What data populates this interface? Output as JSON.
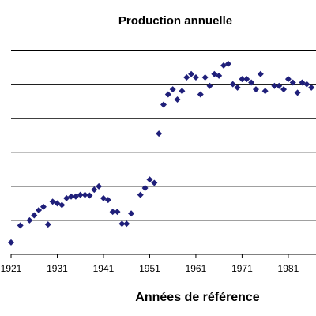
{
  "chart_data": {
    "type": "scatter",
    "title": "Production annuelle",
    "xlabel": "Années de référence",
    "ylabel": "",
    "xlim": [
      1921,
      1987
    ],
    "ylim": [
      0,
      65
    ],
    "x_ticks": [
      "1921",
      "1931",
      "1941",
      "1951",
      "1961",
      "1971",
      "1981"
    ],
    "x_tick_values": [
      1921,
      1931,
      1941,
      1951,
      1961,
      1971,
      1981
    ],
    "y_gridlines": [
      10,
      20,
      30,
      40,
      50,
      60
    ],
    "grid": true,
    "legend": "none",
    "marker_color": "#1f1f7a",
    "series": [
      {
        "x": [
          1921,
          1923,
          1925,
          1926,
          1927,
          1928,
          1929,
          1930,
          1931,
          1932,
          1933,
          1934,
          1935,
          1936,
          1937,
          1938,
          1939,
          1940,
          1941,
          1942,
          1943,
          1944,
          1945,
          1946,
          1947,
          1949,
          1950,
          1951,
          1952,
          1953,
          1954,
          1955,
          1956,
          1957,
          1958,
          1959,
          1960,
          1961,
          1962,
          1963,
          1964,
          1965,
          1966,
          1967,
          1968,
          1969,
          1970,
          1971,
          1972,
          1973,
          1974,
          1975,
          1976,
          1978,
          1979,
          1980,
          1981,
          1982,
          1983,
          1984,
          1985,
          1986
        ],
        "y": [
          3.5,
          8.5,
          10.0,
          11.5,
          13.0,
          14.0,
          8.8,
          15.5,
          15.0,
          14.5,
          16.5,
          17.0,
          17.0,
          17.5,
          17.5,
          17.3,
          19.0,
          20.0,
          16.5,
          16.0,
          12.5,
          12.5,
          9.0,
          9.0,
          12.0,
          17.5,
          19.5,
          22.0,
          21.0,
          35.5,
          44.0,
          47.0,
          48.5,
          45.5,
          48.0,
          52.0,
          53.0,
          52.0,
          47.0,
          52.0,
          49.5,
          53.0,
          52.5,
          55.5,
          56.0,
          50.0,
          49.0,
          51.5,
          51.5,
          50.5,
          48.5,
          53.0,
          48.0,
          49.5,
          49.5,
          48.5,
          51.5,
          50.5,
          47.5,
          50.5,
          50.0,
          49.0
        ]
      }
    ]
  }
}
